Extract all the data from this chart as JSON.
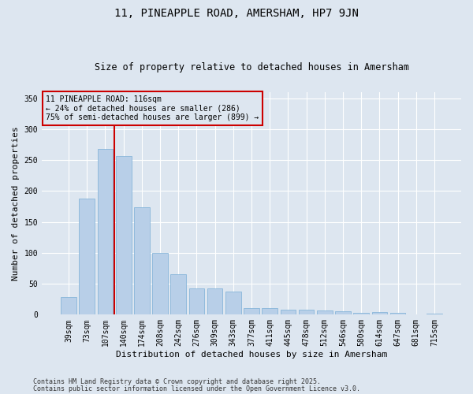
{
  "title1": "11, PINEAPPLE ROAD, AMERSHAM, HP7 9JN",
  "title2": "Size of property relative to detached houses in Amersham",
  "xlabel": "Distribution of detached houses by size in Amersham",
  "ylabel": "Number of detached properties",
  "categories": [
    "39sqm",
    "73sqm",
    "107sqm",
    "140sqm",
    "174sqm",
    "208sqm",
    "242sqm",
    "276sqm",
    "309sqm",
    "343sqm",
    "377sqm",
    "411sqm",
    "445sqm",
    "478sqm",
    "512sqm",
    "546sqm",
    "580sqm",
    "614sqm",
    "647sqm",
    "681sqm",
    "715sqm"
  ],
  "values": [
    29,
    188,
    268,
    256,
    174,
    100,
    65,
    42,
    42,
    38,
    11,
    10,
    8,
    8,
    7,
    5,
    3,
    4,
    3,
    1,
    2
  ],
  "bar_color": "#b8cfe8",
  "bar_edge_color": "#7aaed6",
  "background_color": "#dde6f0",
  "grid_color": "#ffffff",
  "vline_color": "#cc0000",
  "vline_x_index": 2,
  "annotation_title": "11 PINEAPPLE ROAD: 116sqm",
  "annotation_line1": "← 24% of detached houses are smaller (286)",
  "annotation_line2": "75% of semi-detached houses are larger (899) →",
  "annotation_box_color": "#cc0000",
  "ylim": [
    0,
    360
  ],
  "yticks": [
    0,
    50,
    100,
    150,
    200,
    250,
    300,
    350
  ],
  "footer1": "Contains HM Land Registry data © Crown copyright and database right 2025.",
  "footer2": "Contains public sector information licensed under the Open Government Licence v3.0."
}
